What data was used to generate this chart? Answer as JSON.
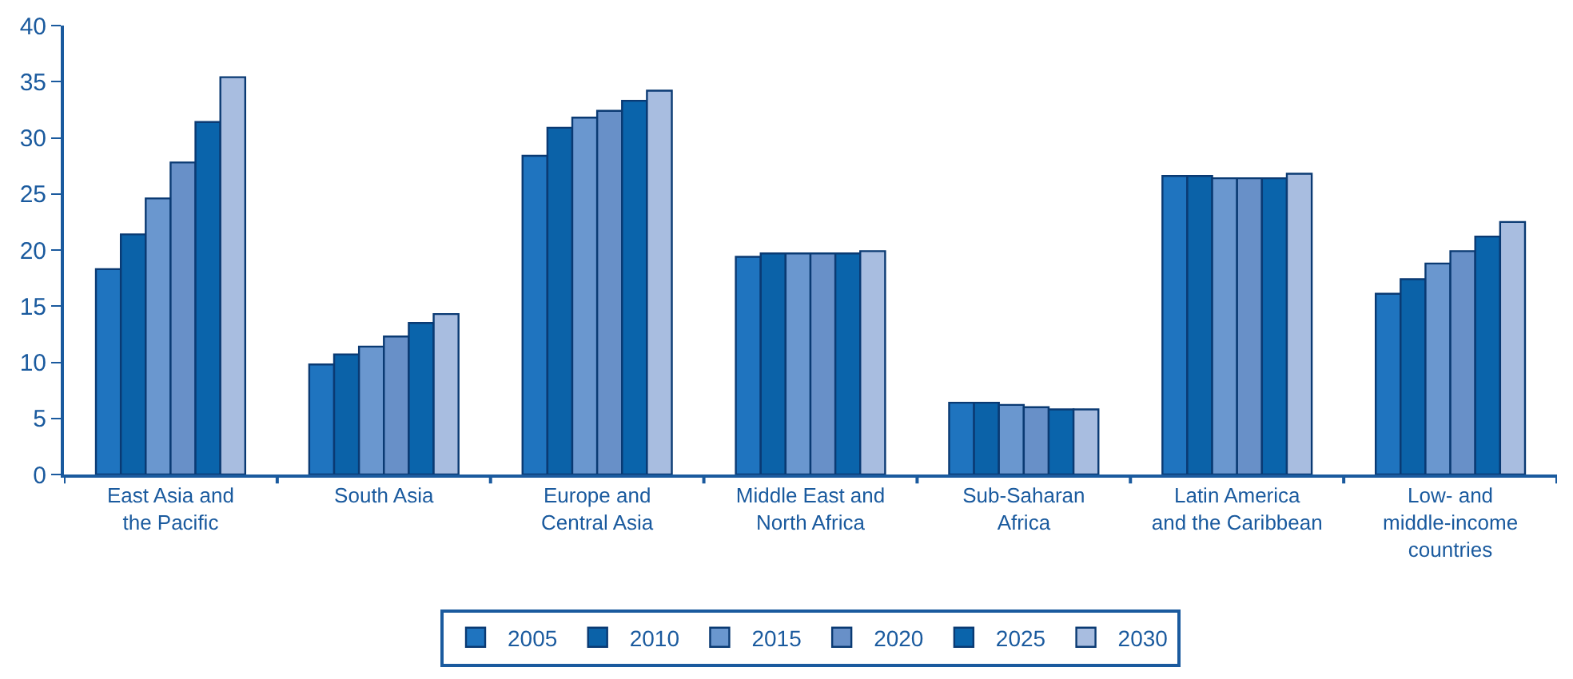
{
  "chart_data": {
    "type": "bar",
    "categories": [
      "East Asia and\nthe Pacific",
      "South Asia",
      "Europe and\nCentral Asia",
      "Middle East and\nNorth Africa",
      "Sub-Saharan\nAfrica",
      "Latin America\nand the Caribbean",
      "Low- and\nmiddle-income\ncountries"
    ],
    "series": [
      {
        "name": "2005",
        "color": "#1f74bf",
        "values": [
          18.3,
          9.8,
          28.4,
          19.4,
          6.4,
          26.6,
          16.1
        ]
      },
      {
        "name": "2010",
        "color": "#0b62a8",
        "values": [
          21.4,
          10.7,
          30.9,
          19.7,
          6.4,
          26.6,
          17.4
        ]
      },
      {
        "name": "2015",
        "color": "#6a97cf",
        "values": [
          24.6,
          11.4,
          31.8,
          19.7,
          6.2,
          26.4,
          18.8
        ]
      },
      {
        "name": "2020",
        "color": "#6890c8",
        "values": [
          27.8,
          12.3,
          32.4,
          19.7,
          6.0,
          26.4,
          19.9
        ]
      },
      {
        "name": "2025",
        "color": "#0a64ab",
        "values": [
          31.4,
          13.5,
          33.3,
          19.7,
          5.8,
          26.4,
          21.2
        ]
      },
      {
        "name": "2030",
        "color": "#a8bde0",
        "values": [
          35.4,
          14.3,
          34.2,
          19.9,
          5.8,
          26.8,
          22.5
        ]
      }
    ],
    "ylim": [
      0,
      40
    ],
    "yticks": [
      0,
      5,
      10,
      15,
      20,
      25,
      30,
      35,
      40
    ],
    "legend": "bottom"
  }
}
